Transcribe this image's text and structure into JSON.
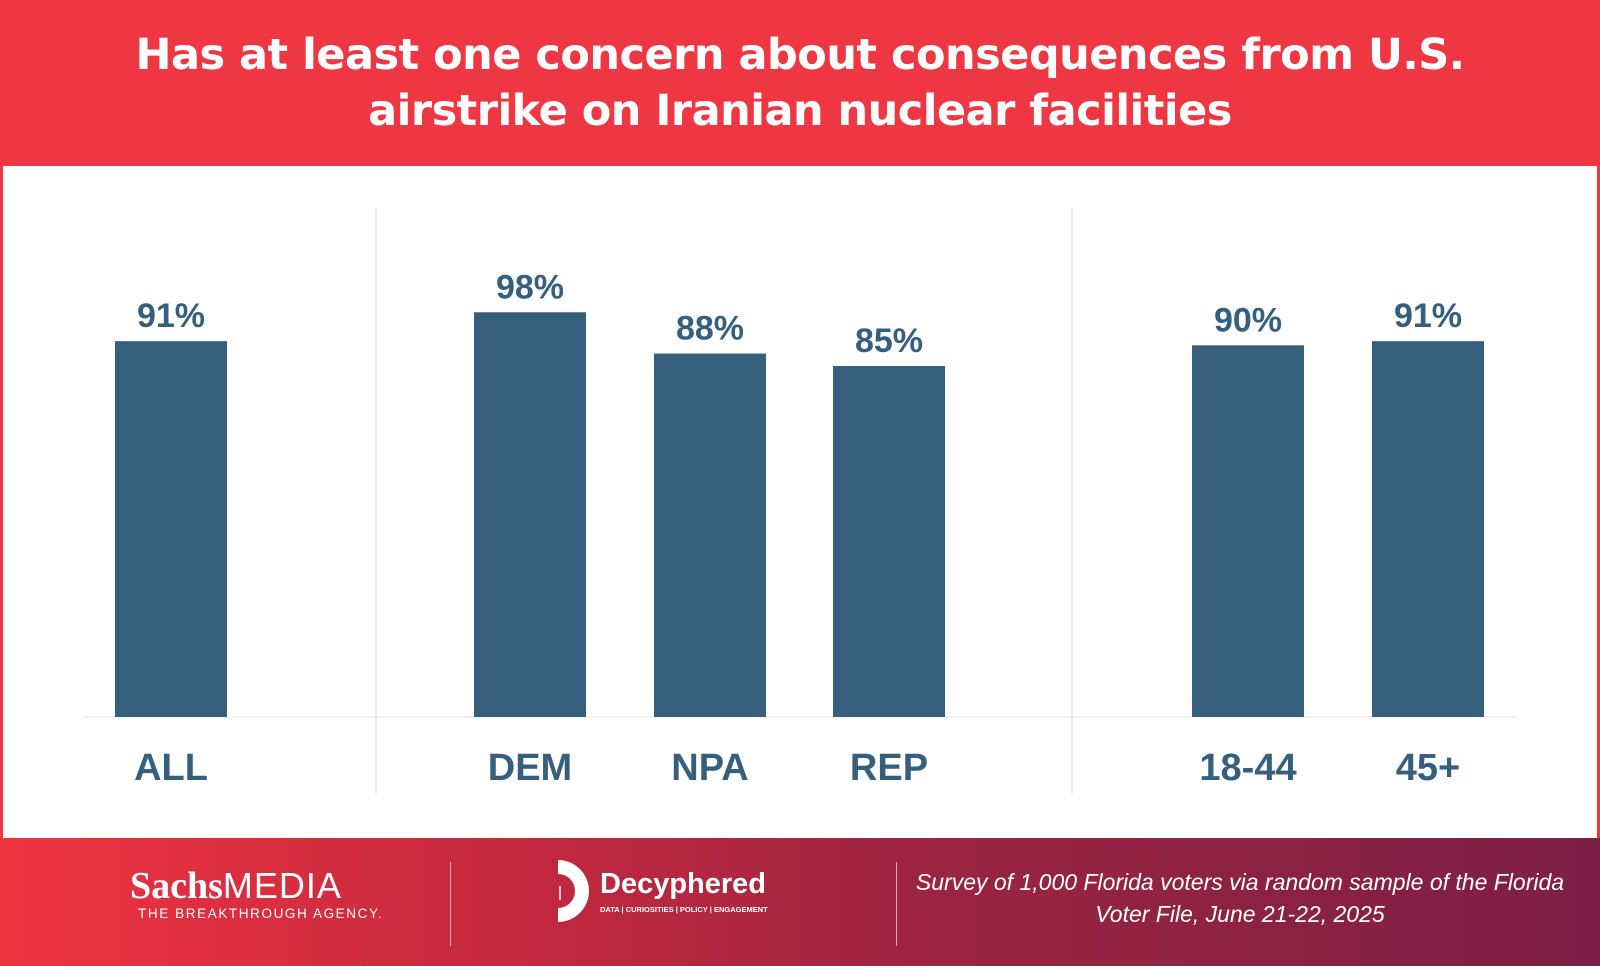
{
  "title": "Has at least one concern about consequences from U.S. airstrike on Iranian nuclear facilities",
  "chart_data": {
    "type": "bar",
    "title": "Has at least one concern about consequences from U.S. airstrike on Iranian nuclear facilities",
    "categories": [
      "ALL",
      "DEM",
      "NPA",
      "REP",
      "18-44",
      "45+"
    ],
    "groups": [
      [
        "ALL"
      ],
      [
        "DEM",
        "NPA",
        "REP"
      ],
      [
        "18-44",
        "45+"
      ]
    ],
    "values": [
      91,
      98,
      88,
      85,
      90,
      91
    ],
    "labels": [
      "91%",
      "98%",
      "88%",
      "85%",
      "90%",
      "91%"
    ],
    "ylim": [
      0,
      100
    ],
    "xlabel": "",
    "ylabel": "",
    "grid": false,
    "bar_color": "#365f7e"
  },
  "footer": {
    "sachs_bold": "Sachs",
    "sachs_light": "MEDIA",
    "sachs_tagline": "THE BREAKTHROUGH AGENCY.",
    "decyphered_name": "Decyphered",
    "decyphered_tagline": "DATA | CURIOSITIES | POLICY | ENGAGEMENT",
    "note": "Survey of 1,000 Florida voters via random sample of the Florida Voter File, June 21-22, 2025"
  }
}
